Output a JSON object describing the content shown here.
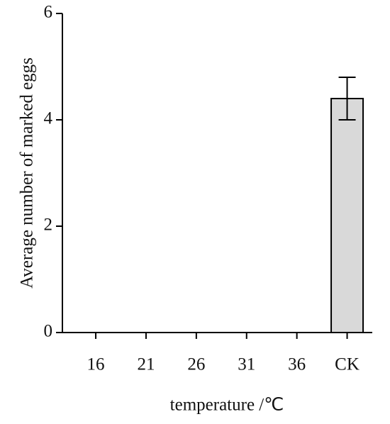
{
  "chart_data": {
    "type": "bar",
    "categories": [
      "16",
      "21",
      "26",
      "31",
      "36",
      "CK"
    ],
    "values": [
      0,
      0,
      0,
      0,
      0,
      4.4
    ],
    "errors": [
      0,
      0,
      0,
      0,
      0,
      0.4
    ],
    "color": "#d9d9d9",
    "ylim": [
      0,
      6
    ],
    "yticks": [
      0,
      2,
      4,
      6
    ],
    "y_label": "Average number of marked eggs",
    "x_label": "temperature /℃"
  }
}
